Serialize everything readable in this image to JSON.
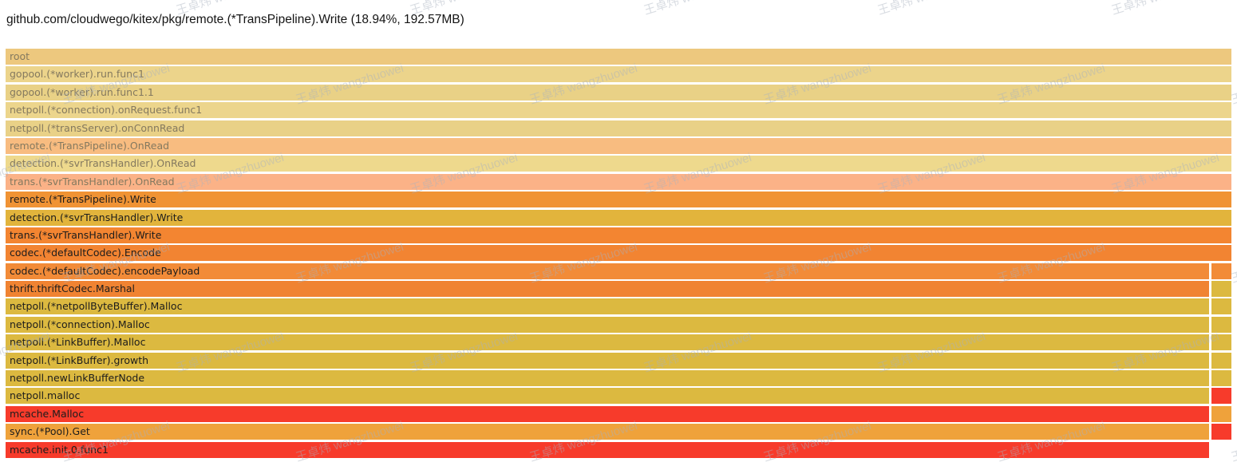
{
  "header": {
    "title": "github.com/cloudwego/kitex/pkg/remote.(*TransPipeline).Write (18.94%, 192.57MB)"
  },
  "watermark": {
    "text": "王卓炜 wangzhuowei"
  },
  "style": {
    "background": "#ffffff",
    "title_text": "#141414",
    "faded_text": "#84795f",
    "strong_text": "#1c1c1c",
    "watermark_color": "rgba(168,178,190,0.45)"
  },
  "chart_data": {
    "type": "flamegraph",
    "orientation": "icicle-top-down",
    "title": "github.com/cloudwego/kitex/pkg/remote.(*TransPipeline).Write (18.94%, 192.57MB)",
    "selected": {
      "frame": "remote.(*TransPipeline).Write",
      "percent": "18.94%",
      "size": "192.57MB"
    },
    "legend_note": "rows 1-8 are faded ancestor frames; rows 9-23 are the selected frame and its descendants; split rows have a narrow second call-path segment at far right",
    "frames": [
      {
        "label": "root",
        "color": "#edc87e",
        "faded": true,
        "split": false,
        "right_color": null
      },
      {
        "label": "gopool.(*worker).run.func1",
        "color": "#ecd48b",
        "faded": true,
        "split": false,
        "right_color": null
      },
      {
        "label": "gopool.(*worker).run.func1.1",
        "color": "#e9d186",
        "faded": true,
        "split": false,
        "right_color": null
      },
      {
        "label": "netpoll.(*connection).onRequest.func1",
        "color": "#ecd58c",
        "faded": true,
        "split": false,
        "right_color": null
      },
      {
        "label": "netpoll.(*transServer).onConnRead",
        "color": "#e9d187",
        "faded": true,
        "split": false,
        "right_color": null
      },
      {
        "label": "remote.(*TransPipeline).OnRead",
        "color": "#f8bc80",
        "faded": true,
        "split": false,
        "right_color": null
      },
      {
        "label": "detection.(*svrTransHandler).OnRead",
        "color": "#eed98d",
        "faded": true,
        "split": false,
        "right_color": null
      },
      {
        "label": "trans.(*svrTransHandler).OnRead",
        "color": "#fbb287",
        "faded": true,
        "split": false,
        "right_color": null
      },
      {
        "label": "remote.(*TransPipeline).Write",
        "color": "#f09334",
        "faded": false,
        "split": false,
        "right_color": null
      },
      {
        "label": "detection.(*svrTransHandler).Write",
        "color": "#e2b43c",
        "faded": false,
        "split": false,
        "right_color": null
      },
      {
        "label": "trans.(*svrTransHandler).Write",
        "color": "#f38531",
        "faded": false,
        "split": false,
        "right_color": null
      },
      {
        "label": "codec.(*defaultCodec).Encode",
        "color": "#f28432",
        "faded": false,
        "split": false,
        "right_color": null
      },
      {
        "label": "codec.(*defaultCodec).encodePayload",
        "color": "#f28b38",
        "faded": false,
        "split": true,
        "right_color": "#f28b38"
      },
      {
        "label": "thrift.thriftCodec.Marshal",
        "color": "#f08332",
        "faded": false,
        "split": true,
        "right_color": "#dcb940"
      },
      {
        "label": "netpoll.(*netpollByteBuffer).Malloc",
        "color": "#dcb940",
        "faded": false,
        "split": true,
        "right_color": "#dcb940"
      },
      {
        "label": "netpoll.(*connection).Malloc",
        "color": "#dcb940",
        "faded": false,
        "split": true,
        "right_color": "#dcb940"
      },
      {
        "label": "netpoll.(*LinkBuffer).Malloc",
        "color": "#dcb940",
        "faded": false,
        "split": true,
        "right_color": "#dcb940"
      },
      {
        "label": "netpoll.(*LinkBuffer).growth",
        "color": "#dcb940",
        "faded": false,
        "split": true,
        "right_color": "#dcb940"
      },
      {
        "label": "netpoll.newLinkBufferNode",
        "color": "#dcb940",
        "faded": false,
        "split": true,
        "right_color": "#dcb940"
      },
      {
        "label": "netpoll.malloc",
        "color": "#dcb940",
        "faded": false,
        "split": true,
        "right_color": "#f73b2b"
      },
      {
        "label": "mcache.Malloc",
        "color": "#f73b2b",
        "faded": false,
        "split": true,
        "right_color": "#efa23b"
      },
      {
        "label": "sync.(*Pool).Get",
        "color": "#efa23b",
        "faded": false,
        "split": true,
        "right_color": "#f73b2b"
      },
      {
        "label": "mcache.init.0.func1",
        "color": "#f73b2b",
        "faded": false,
        "split": true,
        "right_color": null
      }
    ]
  }
}
